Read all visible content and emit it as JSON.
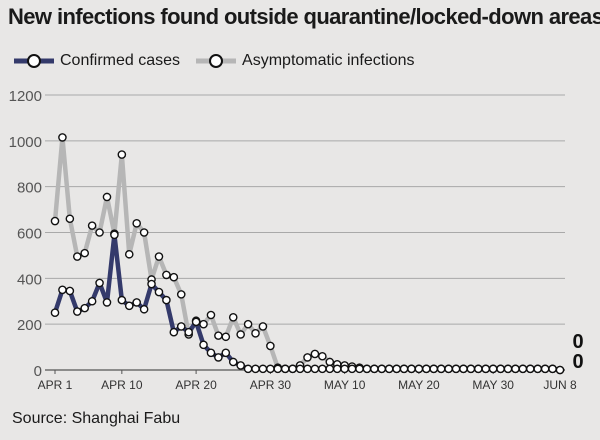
{
  "title": "New infections found outside quarantine/locked-down areas",
  "source": "Source: Shanghai Fabu",
  "legend": [
    {
      "label": "Confirmed cases",
      "color": "#343a6b"
    },
    {
      "label": "Asymptomatic infections",
      "color": "#b6b6b6"
    }
  ],
  "end_labels": {
    "asymptomatic": "0",
    "confirmed": "0"
  },
  "chart_data": {
    "type": "line",
    "title": "New infections found outside quarantine/locked-down areas",
    "xlabel": "",
    "ylabel": "",
    "ylim": [
      0,
      1200
    ],
    "yticks": [
      0,
      200,
      400,
      600,
      800,
      1000,
      1200
    ],
    "grid": true,
    "legend_position": "top-left",
    "x_start": "APR 1",
    "x_end": "JUN 8",
    "xticks": [
      {
        "label": "APR 1",
        "day": "Apr 1"
      },
      {
        "label": "APR 10",
        "day": "Apr 10"
      },
      {
        "label": "APR 20",
        "day": "Apr 20"
      },
      {
        "label": "APR 30",
        "day": "Apr 30"
      },
      {
        "label": "MAY 10",
        "day": "May 10"
      },
      {
        "label": "MAY 20",
        "day": "May 20"
      },
      {
        "label": "MAY 30",
        "day": "May 30"
      },
      {
        "label": "JUN 8",
        "day": "Jun 8"
      }
    ],
    "series": [
      {
        "name": "Asymptomatic infections",
        "color": "#b6b6b6",
        "values": [
          650,
          1015,
          660,
          495,
          510,
          630,
          600,
          755,
          595,
          940,
          505,
          640,
          600,
          395,
          495,
          415,
          405,
          330,
          155,
          215,
          200,
          240,
          150,
          145,
          230,
          155,
          200,
          160,
          190,
          105,
          10,
          5,
          5,
          20,
          55,
          70,
          60,
          35,
          25,
          20,
          15,
          10,
          5,
          5,
          5,
          5,
          5,
          5,
          5,
          5,
          5,
          5,
          5,
          5,
          5,
          5,
          5,
          5,
          5,
          5,
          5,
          5,
          5,
          5,
          5,
          5,
          5,
          5,
          0
        ]
      },
      {
        "name": "Confirmed cases",
        "color": "#343a6b",
        "values": [
          250,
          350,
          345,
          255,
          270,
          300,
          380,
          295,
          590,
          305,
          280,
          295,
          265,
          375,
          340,
          305,
          165,
          190,
          165,
          210,
          110,
          75,
          55,
          75,
          35,
          20,
          5,
          5,
          5,
          5,
          5,
          5,
          5,
          5,
          5,
          5,
          5,
          5,
          5,
          5,
          5,
          5,
          5,
          5,
          5,
          5,
          5,
          5,
          5,
          5,
          5,
          5,
          5,
          5,
          5,
          5,
          5,
          5,
          5,
          5,
          5,
          5,
          5,
          5,
          5,
          5,
          5,
          5,
          0
        ]
      }
    ]
  }
}
